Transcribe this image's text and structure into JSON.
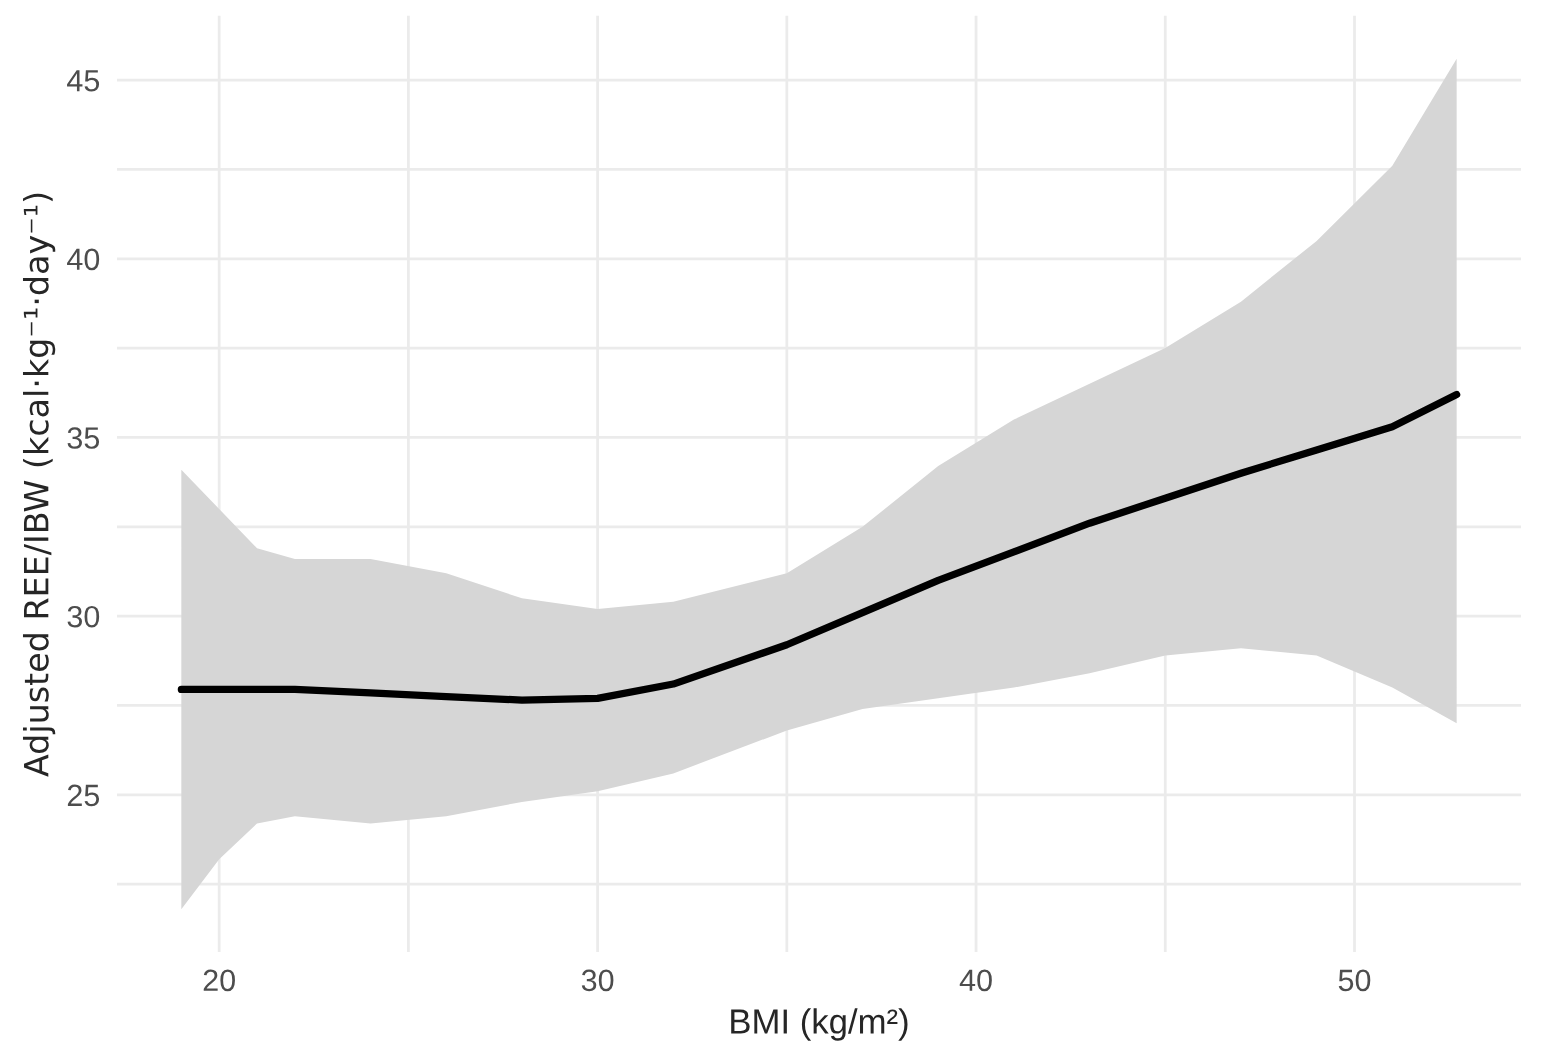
{
  "chart_data": {
    "type": "line",
    "xlabel": "BMI (kg/m²)",
    "ylabel": "Adjusted REE/IBW (kcal·kg⁻¹·day⁻¹)",
    "xlim": [
      17.3,
      54.4
    ],
    "ylim": [
      20.6,
      46.8
    ],
    "xticks": [
      20,
      {
        "value": 25,
        "label": null
      },
      30,
      {
        "value": 35,
        "label": null
      },
      40,
      {
        "value": 45,
        "label": null
      },
      50
    ],
    "yticks": [
      {
        "value": 22.5,
        "label": null
      },
      25,
      {
        "value": 27.5,
        "label": null
      },
      30,
      {
        "value": 32.5,
        "label": null
      },
      35,
      {
        "value": 37.5,
        "label": null
      },
      40,
      {
        "value": 42.5,
        "label": null
      },
      45
    ],
    "grid": true,
    "legend": false,
    "series": [
      {
        "color": "#000000",
        "x": [
          19,
          20,
          21,
          22,
          24,
          26,
          28,
          30,
          32,
          35,
          37,
          39,
          41,
          43,
          45,
          47,
          49,
          51,
          52.7
        ],
        "values": [
          27.95,
          27.95,
          27.95,
          27.95,
          27.85,
          27.75,
          27.65,
          27.7,
          28.1,
          29.2,
          30.1,
          31.0,
          31.8,
          32.6,
          33.3,
          34.0,
          34.65,
          35.3,
          36.2
        ],
        "upper": [
          34.1,
          33.0,
          31.9,
          31.6,
          31.6,
          31.2,
          30.5,
          30.2,
          30.4,
          31.2,
          32.5,
          34.2,
          35.5,
          36.5,
          37.5,
          38.8,
          40.5,
          42.6,
          45.6
        ],
        "lower": [
          21.8,
          23.2,
          24.2,
          24.4,
          24.2,
          24.4,
          24.8,
          25.1,
          25.6,
          26.8,
          27.4,
          27.7,
          28.0,
          28.4,
          28.9,
          29.1,
          28.9,
          28.0,
          27.0
        ]
      }
    ]
  }
}
